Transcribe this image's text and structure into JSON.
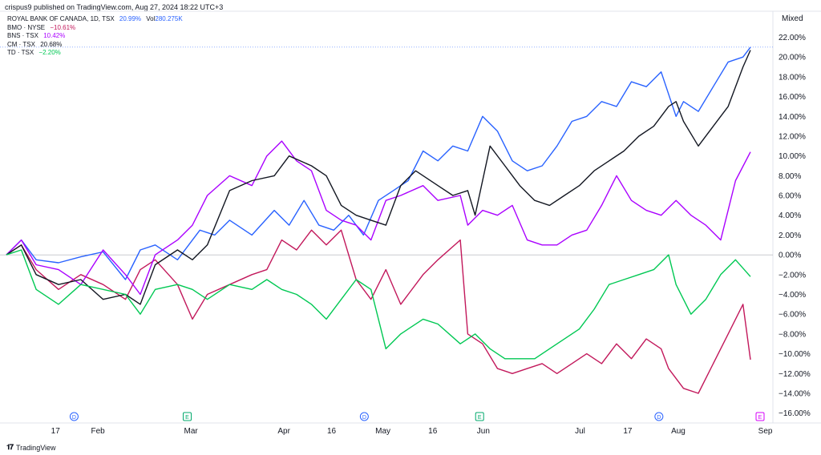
{
  "publish_line": "crispus9 published on TradingView.com, Aug 27, 2024 18:22 UTC+3",
  "scale_mode": "Mixed",
  "brand": "TradingView",
  "legend": [
    {
      "symbol": "ROYAL BANK OF CANADA, 1D, TSX",
      "value": "20.99%",
      "extra": "Vol",
      "extra_value": "280.275K",
      "color": "#2962ff"
    },
    {
      "symbol": "BMO · NYSE",
      "value": "−10.61%",
      "color": "#c2185b"
    },
    {
      "symbol": "BNS · TSX",
      "value": "10.42%",
      "color": "#aa00ff"
    },
    {
      "symbol": "CM · TSX",
      "value": "20.68%",
      "color": "#131722"
    },
    {
      "symbol": "TD · TSX",
      "value": "−2.20%",
      "color": "#00c853"
    }
  ],
  "chart_data": {
    "type": "line",
    "ylim": [
      -17,
      23.5
    ],
    "y_ticks": [
      "22.00%",
      "20.00%",
      "18.00%",
      "16.00%",
      "14.00%",
      "12.00%",
      "10.00%",
      "8.00%",
      "6.00%",
      "4.00%",
      "2.00%",
      "0.00%",
      "−2.00%",
      "−4.00%",
      "−6.00%",
      "−8.00%",
      "−10.00%",
      "−12.00%",
      "−14.00%",
      "−16.00%"
    ],
    "y_tick_values": [
      22,
      20,
      18,
      16,
      14,
      12,
      10,
      8,
      6,
      4,
      2,
      0,
      -2,
      -4,
      -6,
      -8,
      -10,
      -12,
      -14,
      -16
    ],
    "x_labels": [
      {
        "label": "17",
        "t": 0.066
      },
      {
        "label": "Feb",
        "t": 0.123
      },
      {
        "label": "Mar",
        "t": 0.248
      },
      {
        "label": "Apr",
        "t": 0.373
      },
      {
        "label": "16",
        "t": 0.437
      },
      {
        "label": "May",
        "t": 0.506
      },
      {
        "label": "16",
        "t": 0.573
      },
      {
        "label": "Jun",
        "t": 0.641
      },
      {
        "label": "Jul",
        "t": 0.771
      },
      {
        "label": "17",
        "t": 0.835
      },
      {
        "label": "Aug",
        "t": 0.903
      },
      {
        "label": "Sep",
        "t": 1.02
      }
    ],
    "markers": [
      {
        "label": "D",
        "t": 0.091,
        "color": "#2962ff"
      },
      {
        "label": "E",
        "t": 0.243,
        "color": "#00a86b"
      },
      {
        "label": "D",
        "t": 0.481,
        "color": "#2962ff"
      },
      {
        "label": "E",
        "t": 0.636,
        "color": "#00a86b"
      },
      {
        "label": "D",
        "t": 0.877,
        "color": "#2962ff"
      },
      {
        "label": "E",
        "t": 1.017,
        "color": "#d500f9"
      }
    ],
    "series": [
      {
        "name": "ROYAL BANK OF CANADA",
        "color": "#2962ff",
        "x": [
          0,
          0.02,
          0.04,
          0.07,
          0.1,
          0.13,
          0.16,
          0.18,
          0.2,
          0.23,
          0.26,
          0.28,
          0.3,
          0.33,
          0.36,
          0.38,
          0.4,
          0.42,
          0.44,
          0.46,
          0.48,
          0.5,
          0.52,
          0.54,
          0.56,
          0.58,
          0.6,
          0.62,
          0.64,
          0.66,
          0.68,
          0.7,
          0.72,
          0.74,
          0.76,
          0.78,
          0.8,
          0.82,
          0.84,
          0.86,
          0.88,
          0.9,
          0.91,
          0.93,
          0.95,
          0.97,
          0.99,
          1.0
        ],
        "y": [
          0,
          1.5,
          -0.5,
          -0.8,
          -0.2,
          0.3,
          -2.5,
          0.5,
          1.0,
          -0.5,
          2.5,
          2.0,
          3.5,
          2.0,
          4.5,
          3.0,
          5.5,
          3.0,
          2.5,
          4.0,
          2.0,
          5.5,
          6.5,
          7.5,
          10.5,
          9.5,
          11.0,
          10.5,
          14.0,
          12.5,
          9.5,
          8.5,
          9.0,
          11.0,
          13.5,
          14.0,
          15.5,
          15.0,
          17.5,
          17.0,
          18.5,
          14.0,
          15.5,
          14.5,
          17.0,
          19.5,
          20.0,
          21.0
        ]
      },
      {
        "name": "BMO",
        "color": "#c2185b",
        "x": [
          0,
          0.02,
          0.04,
          0.07,
          0.1,
          0.13,
          0.16,
          0.18,
          0.2,
          0.23,
          0.25,
          0.27,
          0.3,
          0.33,
          0.35,
          0.37,
          0.39,
          0.41,
          0.43,
          0.45,
          0.47,
          0.49,
          0.51,
          0.53,
          0.56,
          0.58,
          0.61,
          0.62,
          0.64,
          0.66,
          0.68,
          0.7,
          0.72,
          0.74,
          0.76,
          0.78,
          0.8,
          0.82,
          0.84,
          0.86,
          0.88,
          0.89,
          0.91,
          0.93,
          0.95,
          0.97,
          0.99,
          1.0
        ],
        "y": [
          0,
          1.0,
          -1.5,
          -3.5,
          -2.0,
          -3.0,
          -4.5,
          -1.5,
          -0.5,
          -3.0,
          -6.5,
          -4.0,
          -3.0,
          -2.0,
          -1.5,
          1.5,
          0.5,
          2.5,
          1.0,
          2.5,
          -2.5,
          -4.5,
          -1.5,
          -5.0,
          -2.0,
          -0.5,
          1.5,
          -8.0,
          -9.0,
          -11.5,
          -12.0,
          -11.5,
          -11.0,
          -12.0,
          -11.0,
          -10.0,
          -11.0,
          -9.0,
          -10.5,
          -8.5,
          -9.5,
          -11.5,
          -13.5,
          -14.0,
          -11.0,
          -8.0,
          -5.0,
          -10.6
        ]
      },
      {
        "name": "BNS",
        "color": "#aa00ff",
        "x": [
          0,
          0.02,
          0.04,
          0.07,
          0.1,
          0.13,
          0.16,
          0.18,
          0.2,
          0.23,
          0.25,
          0.27,
          0.3,
          0.33,
          0.35,
          0.37,
          0.39,
          0.41,
          0.43,
          0.45,
          0.47,
          0.49,
          0.51,
          0.53,
          0.56,
          0.58,
          0.61,
          0.62,
          0.64,
          0.66,
          0.68,
          0.7,
          0.72,
          0.74,
          0.76,
          0.78,
          0.8,
          0.82,
          0.84,
          0.86,
          0.88,
          0.9,
          0.92,
          0.94,
          0.96,
          0.98,
          1.0
        ],
        "y": [
          0,
          1.5,
          -1.0,
          -1.5,
          -3.0,
          0.5,
          -2.0,
          -4.0,
          0.0,
          1.5,
          3.0,
          6.0,
          8.0,
          7.0,
          10.0,
          11.5,
          9.5,
          8.5,
          4.5,
          3.5,
          3.0,
          1.5,
          5.5,
          6.0,
          7.0,
          5.5,
          6.0,
          3.0,
          4.5,
          4.0,
          5.0,
          1.5,
          1.0,
          1.0,
          2.0,
          2.5,
          5.0,
          8.0,
          5.5,
          4.5,
          4.0,
          5.5,
          4.0,
          3.0,
          1.5,
          7.5,
          10.4
        ]
      },
      {
        "name": "CM",
        "color": "#131722",
        "x": [
          0,
          0.02,
          0.04,
          0.07,
          0.1,
          0.13,
          0.16,
          0.18,
          0.2,
          0.23,
          0.25,
          0.27,
          0.3,
          0.33,
          0.36,
          0.38,
          0.41,
          0.43,
          0.45,
          0.47,
          0.49,
          0.51,
          0.53,
          0.55,
          0.58,
          0.6,
          0.62,
          0.63,
          0.65,
          0.67,
          0.69,
          0.71,
          0.73,
          0.75,
          0.77,
          0.79,
          0.81,
          0.83,
          0.85,
          0.87,
          0.89,
          0.9,
          0.91,
          0.93,
          0.95,
          0.97,
          0.99,
          1.0
        ],
        "y": [
          0,
          1.0,
          -2.0,
          -3.0,
          -2.5,
          -4.5,
          -4.0,
          -5.0,
          -1.0,
          0.5,
          -0.5,
          1.0,
          6.5,
          7.5,
          8.0,
          10.0,
          9.0,
          8.0,
          5.0,
          4.0,
          3.5,
          3.0,
          7.0,
          8.5,
          7.0,
          6.0,
          6.5,
          4.0,
          11.0,
          9.0,
          7.0,
          5.5,
          5.0,
          6.0,
          7.0,
          8.5,
          9.5,
          10.5,
          12.0,
          13.0,
          15.0,
          15.5,
          13.5,
          11.0,
          13.0,
          15.0,
          19.0,
          20.7
        ]
      },
      {
        "name": "TD",
        "color": "#00c853",
        "x": [
          0,
          0.02,
          0.04,
          0.07,
          0.1,
          0.13,
          0.16,
          0.18,
          0.2,
          0.23,
          0.25,
          0.27,
          0.3,
          0.33,
          0.35,
          0.37,
          0.39,
          0.41,
          0.43,
          0.45,
          0.47,
          0.49,
          0.51,
          0.53,
          0.56,
          0.58,
          0.61,
          0.63,
          0.65,
          0.67,
          0.69,
          0.71,
          0.73,
          0.75,
          0.77,
          0.79,
          0.81,
          0.83,
          0.85,
          0.87,
          0.89,
          0.9,
          0.92,
          0.94,
          0.96,
          0.98,
          1.0
        ],
        "y": [
          0,
          0.5,
          -3.5,
          -5.0,
          -3.0,
          -3.5,
          -4.0,
          -6.0,
          -3.5,
          -3.0,
          -3.5,
          -4.5,
          -3.0,
          -3.5,
          -2.5,
          -3.5,
          -4.0,
          -5.0,
          -6.5,
          -4.5,
          -2.5,
          -3.5,
          -9.5,
          -8.0,
          -6.5,
          -7.0,
          -9.0,
          -8.0,
          -9.5,
          -10.5,
          -10.5,
          -10.5,
          -9.5,
          -8.5,
          -7.5,
          -5.5,
          -3.0,
          -2.5,
          -2.0,
          -1.5,
          0.0,
          -3.0,
          -6.0,
          -4.5,
          -2.0,
          -0.5,
          -2.2
        ]
      }
    ]
  }
}
